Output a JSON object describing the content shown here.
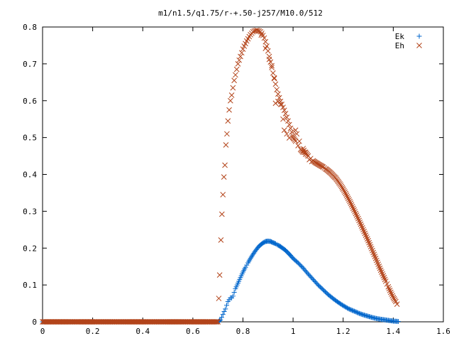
{
  "chart_data": {
    "type": "scatter",
    "title": "m1/n1.5/q1.75/r-+.50-j257/M10.0/512",
    "xlabel": "",
    "ylabel": "",
    "xlim": [
      0,
      1.6
    ],
    "ylim": [
      0,
      0.8
    ],
    "grid": false,
    "legend_position": "top-right",
    "x_ticks": [
      "0",
      "0.2",
      "0.4",
      "0.6",
      "0.8",
      "1",
      "1.2",
      "1.4",
      "1.6"
    ],
    "y_ticks": [
      "0",
      "0.1",
      "0.2",
      "0.3",
      "0.4",
      "0.5",
      "0.6",
      "0.7",
      "0.8"
    ],
    "series": [
      {
        "name": "Ek",
        "marker": "plus",
        "color": "#0066cc",
        "points": [
          [
            0.0,
            0
          ],
          [
            0.05,
            0
          ],
          [
            0.1,
            0
          ],
          [
            0.15,
            0
          ],
          [
            0.2,
            0
          ],
          [
            0.25,
            0
          ],
          [
            0.3,
            0
          ],
          [
            0.35,
            0
          ],
          [
            0.4,
            0
          ],
          [
            0.45,
            0
          ],
          [
            0.5,
            0
          ],
          [
            0.55,
            0
          ],
          [
            0.6,
            0
          ],
          [
            0.65,
            0
          ],
          [
            0.7,
            0
          ],
          [
            0.71,
            0.005
          ],
          [
            0.715,
            0.012
          ],
          [
            0.72,
            0.02
          ],
          [
            0.725,
            0.028
          ],
          [
            0.73,
            0.035
          ],
          [
            0.735,
            0.045
          ],
          [
            0.74,
            0.055
          ],
          [
            0.745,
            0.06
          ],
          [
            0.75,
            0.065
          ],
          [
            0.755,
            0.065
          ],
          [
            0.76,
            0.07
          ],
          [
            0.765,
            0.08
          ],
          [
            0.77,
            0.09
          ],
          [
            0.78,
            0.105
          ],
          [
            0.79,
            0.12
          ],
          [
            0.8,
            0.135
          ],
          [
            0.81,
            0.148
          ],
          [
            0.82,
            0.16
          ],
          [
            0.83,
            0.172
          ],
          [
            0.84,
            0.183
          ],
          [
            0.85,
            0.193
          ],
          [
            0.86,
            0.202
          ],
          [
            0.87,
            0.209
          ],
          [
            0.88,
            0.214
          ],
          [
            0.89,
            0.218
          ],
          [
            0.9,
            0.219
          ],
          [
            0.91,
            0.218
          ],
          [
            0.92,
            0.215
          ],
          [
            0.93,
            0.212
          ],
          [
            0.94,
            0.208
          ],
          [
            0.95,
            0.204
          ],
          [
            0.96,
            0.199
          ],
          [
            0.97,
            0.194
          ],
          [
            0.98,
            0.187
          ],
          [
            0.99,
            0.18
          ],
          [
            1.0,
            0.172
          ],
          [
            1.02,
            0.16
          ],
          [
            1.04,
            0.146
          ],
          [
            1.06,
            0.13
          ],
          [
            1.08,
            0.115
          ],
          [
            1.1,
            0.1
          ],
          [
            1.12,
            0.087
          ],
          [
            1.14,
            0.074
          ],
          [
            1.16,
            0.063
          ],
          [
            1.18,
            0.053
          ],
          [
            1.2,
            0.044
          ],
          [
            1.22,
            0.036
          ],
          [
            1.24,
            0.03
          ],
          [
            1.26,
            0.024
          ],
          [
            1.28,
            0.019
          ],
          [
            1.3,
            0.015
          ],
          [
            1.32,
            0.011
          ],
          [
            1.34,
            0.008
          ],
          [
            1.36,
            0.006
          ],
          [
            1.38,
            0.004
          ],
          [
            1.4,
            0.002
          ],
          [
            1.42,
            0.001
          ]
        ]
      },
      {
        "name": "Eh",
        "marker": "cross",
        "color": "#b3441a",
        "points": [
          [
            0.0,
            0
          ],
          [
            0.05,
            0
          ],
          [
            0.1,
            0
          ],
          [
            0.15,
            0
          ],
          [
            0.2,
            0
          ],
          [
            0.25,
            0
          ],
          [
            0.3,
            0
          ],
          [
            0.35,
            0
          ],
          [
            0.4,
            0
          ],
          [
            0.45,
            0
          ],
          [
            0.5,
            0
          ],
          [
            0.55,
            0
          ],
          [
            0.6,
            0
          ],
          [
            0.65,
            0
          ],
          [
            0.7,
            0
          ],
          [
            0.707,
            0.127
          ],
          [
            0.712,
            0.222
          ],
          [
            0.716,
            0.292
          ],
          [
            0.72,
            0.345
          ],
          [
            0.724,
            0.393
          ],
          [
            0.728,
            0.425
          ],
          [
            0.732,
            0.48
          ],
          [
            0.736,
            0.51
          ],
          [
            0.74,
            0.545
          ],
          [
            0.745,
            0.575
          ],
          [
            0.75,
            0.6
          ],
          [
            0.755,
            0.615
          ],
          [
            0.76,
            0.635
          ],
          [
            0.765,
            0.655
          ],
          [
            0.77,
            0.67
          ],
          [
            0.775,
            0.685
          ],
          [
            0.78,
            0.7
          ],
          [
            0.785,
            0.71
          ],
          [
            0.79,
            0.72
          ],
          [
            0.795,
            0.73
          ],
          [
            0.8,
            0.74
          ],
          [
            0.805,
            0.748
          ],
          [
            0.81,
            0.755
          ],
          [
            0.815,
            0.762
          ],
          [
            0.82,
            0.768
          ],
          [
            0.825,
            0.774
          ],
          [
            0.83,
            0.779
          ],
          [
            0.835,
            0.783
          ],
          [
            0.84,
            0.787
          ],
          [
            0.845,
            0.789
          ],
          [
            0.85,
            0.79
          ],
          [
            0.855,
            0.791
          ],
          [
            0.86,
            0.79
          ],
          [
            0.865,
            0.789
          ],
          [
            0.87,
            0.787
          ],
          [
            0.875,
            0.783
          ],
          [
            0.88,
            0.777
          ],
          [
            0.885,
            0.77
          ],
          [
            0.89,
            0.76
          ],
          [
            0.895,
            0.748
          ],
          [
            0.9,
            0.735
          ],
          [
            0.905,
            0.72
          ],
          [
            0.91,
            0.705
          ],
          [
            0.915,
            0.69
          ],
          [
            0.92,
            0.675
          ],
          [
            0.925,
            0.66
          ],
          [
            0.93,
            0.645
          ],
          [
            0.935,
            0.63
          ],
          [
            0.94,
            0.618
          ],
          [
            0.945,
            0.608
          ],
          [
            0.95,
            0.598
          ],
          [
            0.955,
            0.59
          ],
          [
            0.96,
            0.582
          ],
          [
            0.965,
            0.574
          ],
          [
            0.97,
            0.565
          ],
          [
            0.975,
            0.555
          ],
          [
            0.98,
            0.545
          ],
          [
            0.985,
            0.535
          ],
          [
            0.99,
            0.525
          ],
          [
            0.995,
            0.515
          ],
          [
            1.0,
            0.505
          ],
          [
            1.01,
            0.49
          ],
          [
            1.02,
            0.478
          ],
          [
            1.03,
            0.468
          ],
          [
            1.04,
            0.46
          ],
          [
            1.05,
            0.455
          ],
          [
            1.06,
            0.45
          ],
          [
            1.07,
            0.443
          ],
          [
            1.08,
            0.437
          ],
          [
            1.09,
            0.432
          ],
          [
            1.1,
            0.428
          ],
          [
            1.11,
            0.424
          ],
          [
            1.12,
            0.42
          ],
          [
            1.13,
            0.415
          ],
          [
            1.14,
            0.41
          ],
          [
            1.15,
            0.404
          ],
          [
            1.16,
            0.397
          ],
          [
            1.17,
            0.39
          ],
          [
            1.18,
            0.381
          ],
          [
            1.19,
            0.371
          ],
          [
            1.2,
            0.36
          ],
          [
            1.21,
            0.348
          ],
          [
            1.22,
            0.335
          ],
          [
            1.23,
            0.322
          ],
          [
            1.24,
            0.308
          ],
          [
            1.25,
            0.294
          ],
          [
            1.26,
            0.28
          ],
          [
            1.27,
            0.265
          ],
          [
            1.28,
            0.25
          ],
          [
            1.29,
            0.235
          ],
          [
            1.3,
            0.22
          ],
          [
            1.31,
            0.204
          ],
          [
            1.32,
            0.188
          ],
          [
            1.33,
            0.172
          ],
          [
            1.34,
            0.156
          ],
          [
            1.35,
            0.14
          ],
          [
            1.36,
            0.125
          ],
          [
            1.37,
            0.11
          ],
          [
            1.38,
            0.095
          ],
          [
            1.39,
            0.08
          ],
          [
            1.4,
            0.066
          ],
          [
            1.41,
            0.055
          ],
          [
            1.415,
            0.048
          ],
          [
            0.873,
            0.778
          ],
          [
            0.89,
            0.742
          ],
          [
            0.905,
            0.712
          ],
          [
            0.915,
            0.695
          ],
          [
            0.925,
            0.662
          ],
          [
            0.93,
            0.593
          ],
          [
            0.94,
            0.598
          ],
          [
            0.95,
            0.59
          ],
          [
            0.96,
            0.55
          ],
          [
            0.965,
            0.52
          ],
          [
            0.975,
            0.51
          ],
          [
            0.985,
            0.499
          ],
          [
            1.0,
            0.5
          ],
          [
            1.01,
            0.52
          ],
          [
            1.015,
            0.51
          ],
          [
            1.025,
            0.49
          ],
          [
            1.04,
            0.47
          ],
          [
            1.05,
            0.46
          ],
          [
            1.06,
            0.45
          ],
          [
            1.065,
            0.44
          ],
          [
            1.075,
            0.435
          ]
        ]
      }
    ]
  }
}
